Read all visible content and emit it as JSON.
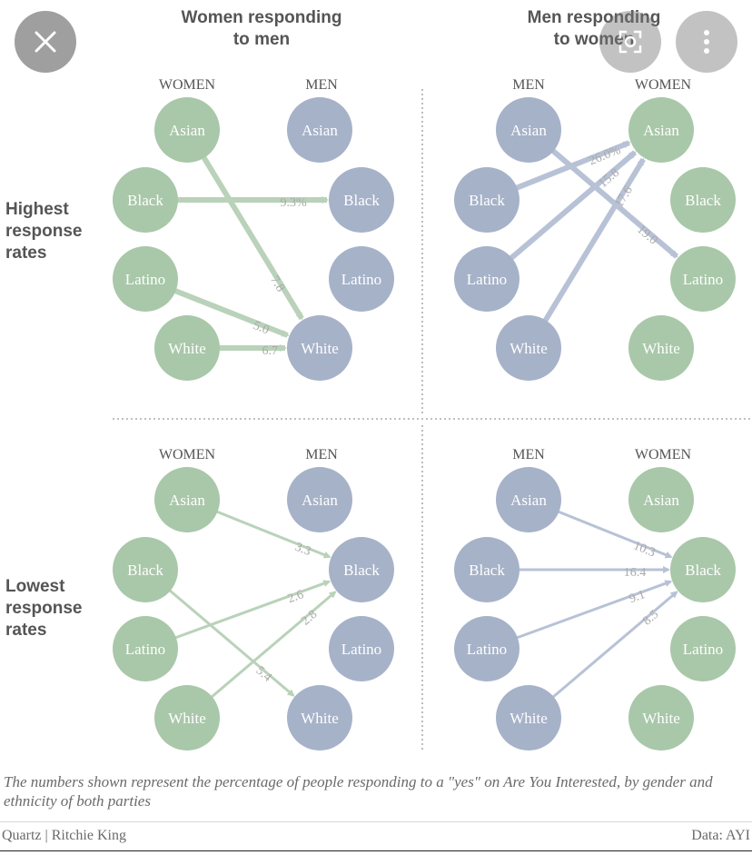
{
  "panel_titles": {
    "women_to_men": [
      "Women responding",
      "to men"
    ],
    "men_to_women": [
      "Men responding",
      "to women"
    ]
  },
  "row_labels": {
    "highest": [
      "Highest",
      "response",
      "rates"
    ],
    "lowest": [
      "Lowest",
      "response",
      "rates"
    ]
  },
  "column_headers": {
    "women": "WOMEN",
    "men": "MEN"
  },
  "groups": [
    "Asian",
    "Black",
    "Latino",
    "White"
  ],
  "colors": {
    "women": "#a9c7a9",
    "men": "#a6b2c8",
    "arrow_green": "#b9d2b9",
    "arrow_blue": "#b8c2d6",
    "label": "#a9a9a9",
    "divider": "#9a9a9a"
  },
  "panels": [
    {
      "id": "highest-women-to-men",
      "row": "highest",
      "direction": "women_to_men",
      "edges": [
        {
          "from": "Asian",
          "to": "White",
          "value": "7.8"
        },
        {
          "from": "Black",
          "to": "Black",
          "value": "9.3%"
        },
        {
          "from": "Latino",
          "to": "White",
          "value": "5.0"
        },
        {
          "from": "White",
          "to": "White",
          "value": "6.7"
        }
      ]
    },
    {
      "id": "highest-men-to-women",
      "row": "highest",
      "direction": "men_to_women",
      "edges": [
        {
          "from": "Asian",
          "to": "Latino",
          "value": "19.0"
        },
        {
          "from": "Black",
          "to": "Asian",
          "value": "26.0%"
        },
        {
          "from": "Latino",
          "to": "Asian",
          "value": "15.8"
        },
        {
          "from": "White",
          "to": "Asian",
          "value": "17.6"
        }
      ]
    },
    {
      "id": "lowest-women-to-men",
      "row": "lowest",
      "direction": "women_to_men",
      "edges": [
        {
          "from": "Asian",
          "to": "Black",
          "value": "3.3"
        },
        {
          "from": "Black",
          "to": "White",
          "value": "5.4"
        },
        {
          "from": "Latino",
          "to": "Black",
          "value": "2.6"
        },
        {
          "from": "White",
          "to": "Black",
          "value": "2.8"
        }
      ]
    },
    {
      "id": "lowest-men-to-women",
      "row": "lowest",
      "direction": "men_to_women",
      "edges": [
        {
          "from": "Asian",
          "to": "Black",
          "value": "10.3"
        },
        {
          "from": "Black",
          "to": "Black",
          "value": "16.4"
        },
        {
          "from": "Latino",
          "to": "Black",
          "value": "9.1"
        },
        {
          "from": "White",
          "to": "Black",
          "value": "8.5"
        }
      ]
    }
  ],
  "note": "The numbers shown represent the percentage of people responding to a \"yes\" on Are You Interested, by gender and ethnicity of both parties",
  "credit": "Quartz | Ritchie King",
  "source": "Data: AYI",
  "overlay_icons": [
    "close-icon",
    "lens-icon",
    "more-icon"
  ]
}
